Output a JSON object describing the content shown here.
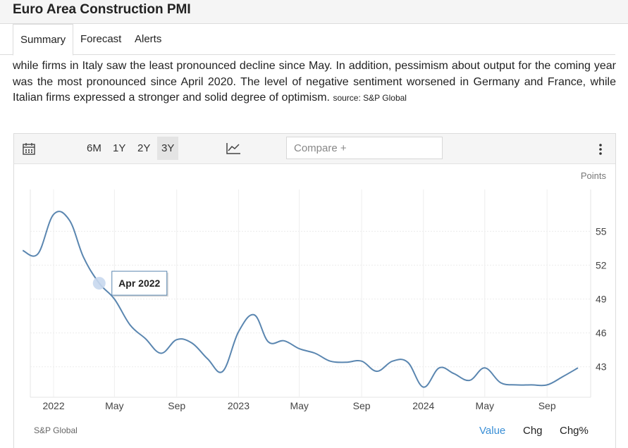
{
  "header": {
    "title": "Euro Area Construction PMI"
  },
  "tabs": [
    {
      "label": "Summary"
    },
    {
      "label": "Forecast"
    },
    {
      "label": "Alerts"
    }
  ],
  "description": {
    "text": "while firms in Italy saw the least pronounced decline since May. In addition, pessimism about output for the coming year was the most pronounced since April 2020. The level of negative sentiment worsened in Germany and France, while Italian firms expressed a stronger and solid degree of optimism.",
    "source_label": "source: S&P Global"
  },
  "toolbar": {
    "ranges": [
      "6M",
      "1Y",
      "2Y",
      "3Y"
    ],
    "active_range": "3Y",
    "compare_placeholder": "Compare +",
    "calendar_icon": "calendar-icon",
    "chart_type_icon": "line-chart-icon",
    "menu_icon": "more-vertical-icon"
  },
  "chart_footer": {
    "source": "S&P Global",
    "modes": [
      "Value",
      "Chg",
      "Chg%"
    ],
    "active_mode": "Value"
  },
  "colors": {
    "line": "#5a86b0",
    "active_mode": "#3a8fd6",
    "marker": "#c8d8ee"
  },
  "chart_data": {
    "type": "line",
    "ylabel": "Points",
    "x_tick_labels": [
      "2022",
      "May",
      "Sep",
      "2023",
      "May",
      "Sep",
      "2024",
      "May",
      "Sep"
    ],
    "y_tick_labels": [
      "55",
      "52",
      "49",
      "46",
      "43"
    ],
    "ylim": [
      40.3,
      58.7
    ],
    "grid": true,
    "tooltip": {
      "label": "Apr 2022",
      "x": "2022-04",
      "y": 50.4
    },
    "series": [
      {
        "x": [
          "2021-11",
          "2021-12",
          "2022-01",
          "2022-02",
          "2022-03",
          "2022-04",
          "2022-05",
          "2022-06",
          "2022-07",
          "2022-08",
          "2022-09",
          "2022-10",
          "2022-11",
          "2022-12",
          "2023-01",
          "2023-02",
          "2023-03",
          "2023-04",
          "2023-05",
          "2023-06",
          "2023-07",
          "2023-08",
          "2023-09",
          "2023-10",
          "2023-11",
          "2023-12",
          "2024-01",
          "2024-02",
          "2024-03",
          "2024-04",
          "2024-05",
          "2024-06",
          "2024-07",
          "2024-08",
          "2024-09",
          "2024-10",
          "2024-11"
        ],
        "y": [
          53.3,
          53.0,
          56.5,
          56.0,
          52.7,
          50.4,
          49.0,
          46.7,
          45.5,
          44.2,
          45.4,
          45.1,
          43.7,
          42.6,
          46.1,
          47.6,
          45.2,
          45.3,
          44.6,
          44.2,
          43.5,
          43.4,
          43.5,
          42.6,
          43.5,
          43.4,
          41.2,
          42.9,
          42.4,
          41.8,
          42.9,
          41.6,
          41.4,
          41.4,
          41.4,
          42.1,
          42.9
        ]
      }
    ]
  }
}
